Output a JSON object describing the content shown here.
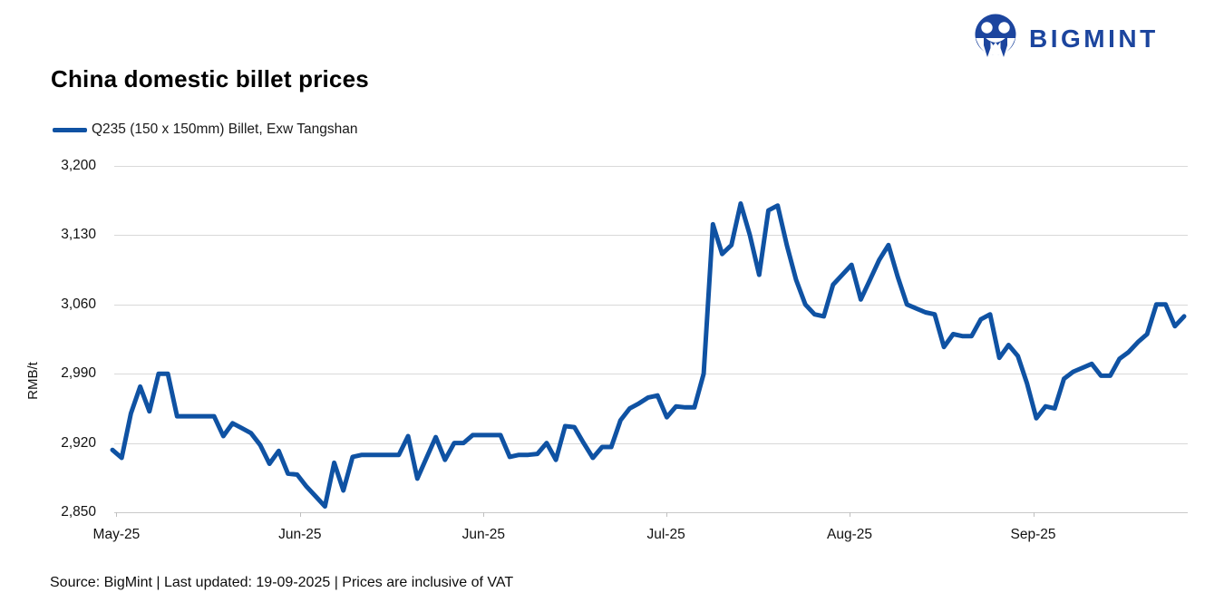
{
  "header": {
    "title": "China domestic billet prices",
    "brand_name": "BIGMINT",
    "brand_color": "#1C459E"
  },
  "legend": {
    "label": "Q235 (150 x 150mm) Billet, Exw Tangshan",
    "line_color": "#0F52A3"
  },
  "footer": {
    "text": "Source: BigMint | Last updated: 19-09-2025 | Prices are inclusive of VAT"
  },
  "colors": {
    "gridline": "#d9d9d9",
    "axis": "#c9c9c9",
    "tick": "#bfbfbf"
  },
  "chart_data": {
    "type": "line",
    "title": "China domestic billet prices",
    "ylabel": "RMB/t",
    "xlabel": "",
    "ylim": [
      2850,
      3200
    ],
    "y_ticks": [
      2850,
      2920,
      2990,
      3060,
      3130,
      3200
    ],
    "x_ticks": [
      {
        "label": "May-25",
        "pos": 0.002
      },
      {
        "label": "Jun-25",
        "pos": 0.173
      },
      {
        "label": "Jun-25",
        "pos": 0.344
      },
      {
        "label": "Jul-25",
        "pos": 0.514
      },
      {
        "label": "Aug-25",
        "pos": 0.685
      },
      {
        "label": "Sep-25",
        "pos": 0.856
      }
    ],
    "grid": "horizontal",
    "legend_position": "top-left",
    "series": [
      {
        "name": "Q235 (150 x 150mm) Billet, Exw Tangshan",
        "color": "#0F52A3",
        "values": [
          2913,
          2905,
          2950,
          2977,
          2952,
          2990,
          2990,
          2947,
          2947,
          2947,
          2947,
          2947,
          2927,
          2940,
          2935,
          2930,
          2918,
          2899,
          2912,
          2889,
          2888,
          2876,
          2866,
          2856,
          2900,
          2872,
          2906,
          2908,
          2908,
          2908,
          2908,
          2908,
          2927,
          2884,
          2905,
          2926,
          2903,
          2920,
          2920,
          2928,
          2928,
          2928,
          2928,
          2906,
          2908,
          2908,
          2909,
          2920,
          2903,
          2937,
          2936,
          2920,
          2905,
          2916,
          2916,
          2943,
          2955,
          2960,
          2966,
          2968,
          2946,
          2957,
          2956,
          2956,
          2990,
          3141,
          3111,
          3120,
          3162,
          3130,
          3090,
          3155,
          3160,
          3120,
          3085,
          3060,
          3050,
          3048,
          3080,
          3090,
          3100,
          3065,
          3085,
          3105,
          3120,
          3088,
          3060,
          3056,
          3052,
          3050,
          3017,
          3030,
          3028,
          3028,
          3045,
          3050,
          3006,
          3019,
          3008,
          2980,
          2945,
          2957,
          2955,
          2985,
          2992,
          2996,
          3000,
          2988,
          2988,
          3005,
          3012,
          3022,
          3030,
          3060,
          3060,
          3038,
          3048
        ]
      }
    ]
  }
}
